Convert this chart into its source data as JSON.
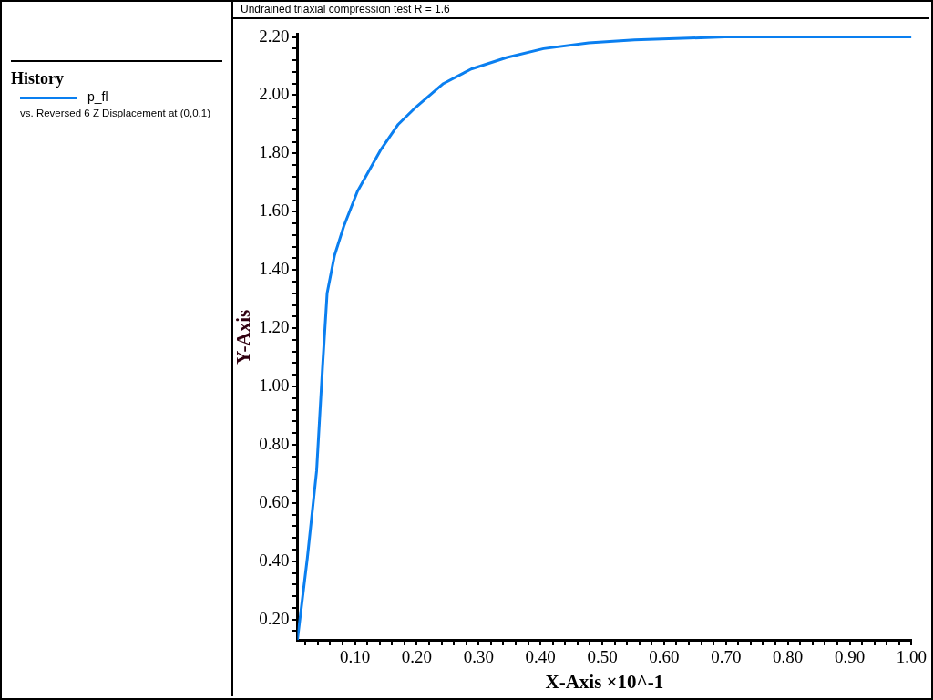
{
  "chart_data": {
    "type": "line",
    "title": "Undrained triaxial compression test R = 1.6",
    "xlabel": "X-Axis ×10^-1",
    "ylabel": "Y-Axis",
    "legend_title": "History",
    "legend": "left",
    "annotations": [
      "vs. Reversed 6 Z Displacement at (0,0,1)"
    ],
    "marker": "none",
    "line_style": "solid",
    "grid": false,
    "xlim": [
      0.007,
      1.0
    ],
    "ylim": [
      0.13,
      2.21
    ],
    "xticks": [
      {
        "value": 0.02,
        "label": null
      },
      {
        "value": 0.04,
        "label": null
      },
      {
        "value": 0.06,
        "label": null
      },
      {
        "value": 0.08,
        "label": null
      },
      {
        "value": 0.1,
        "label": "0.10"
      },
      {
        "value": 0.12,
        "label": null
      },
      {
        "value": 0.14,
        "label": null
      },
      {
        "value": 0.16,
        "label": null
      },
      {
        "value": 0.18,
        "label": null
      },
      {
        "value": 0.2,
        "label": "0.20"
      },
      {
        "value": 0.22,
        "label": null
      },
      {
        "value": 0.24,
        "label": null
      },
      {
        "value": 0.26,
        "label": null
      },
      {
        "value": 0.28,
        "label": null
      },
      {
        "value": 0.3,
        "label": "0.30"
      },
      {
        "value": 0.32,
        "label": null
      },
      {
        "value": 0.34,
        "label": null
      },
      {
        "value": 0.36,
        "label": null
      },
      {
        "value": 0.38,
        "label": null
      },
      {
        "value": 0.4,
        "label": "0.40"
      },
      {
        "value": 0.42,
        "label": null
      },
      {
        "value": 0.44,
        "label": null
      },
      {
        "value": 0.46,
        "label": null
      },
      {
        "value": 0.48,
        "label": null
      },
      {
        "value": 0.5,
        "label": "0.50"
      },
      {
        "value": 0.52,
        "label": null
      },
      {
        "value": 0.54,
        "label": null
      },
      {
        "value": 0.56,
        "label": null
      },
      {
        "value": 0.58,
        "label": null
      },
      {
        "value": 0.6,
        "label": "0.60"
      },
      {
        "value": 0.62,
        "label": null
      },
      {
        "value": 0.64,
        "label": null
      },
      {
        "value": 0.66,
        "label": null
      },
      {
        "value": 0.68,
        "label": null
      },
      {
        "value": 0.7,
        "label": "0.70"
      },
      {
        "value": 0.72,
        "label": null
      },
      {
        "value": 0.74,
        "label": null
      },
      {
        "value": 0.76,
        "label": null
      },
      {
        "value": 0.78,
        "label": null
      },
      {
        "value": 0.8,
        "label": "0.80"
      },
      {
        "value": 0.82,
        "label": null
      },
      {
        "value": 0.84,
        "label": null
      },
      {
        "value": 0.86,
        "label": null
      },
      {
        "value": 0.88,
        "label": null
      },
      {
        "value": 0.9,
        "label": "0.90"
      },
      {
        "value": 0.92,
        "label": null
      },
      {
        "value": 0.94,
        "label": null
      },
      {
        "value": 0.96,
        "label": null
      },
      {
        "value": 0.98,
        "label": null
      },
      {
        "value": 1.0,
        "label": "1.00"
      }
    ],
    "yticks": [
      {
        "value": 0.16,
        "label": null
      },
      {
        "value": 0.2,
        "label": "0.20"
      },
      {
        "value": 0.24,
        "label": null
      },
      {
        "value": 0.28,
        "label": null
      },
      {
        "value": 0.32,
        "label": null
      },
      {
        "value": 0.36,
        "label": null
      },
      {
        "value": 0.4,
        "label": "0.40"
      },
      {
        "value": 0.44,
        "label": null
      },
      {
        "value": 0.48,
        "label": null
      },
      {
        "value": 0.52,
        "label": null
      },
      {
        "value": 0.56,
        "label": null
      },
      {
        "value": 0.6,
        "label": "0.60"
      },
      {
        "value": 0.64,
        "label": null
      },
      {
        "value": 0.68,
        "label": null
      },
      {
        "value": 0.72,
        "label": null
      },
      {
        "value": 0.76,
        "label": null
      },
      {
        "value": 0.8,
        "label": "0.80"
      },
      {
        "value": 0.84,
        "label": null
      },
      {
        "value": 0.88,
        "label": null
      },
      {
        "value": 0.92,
        "label": null
      },
      {
        "value": 0.96,
        "label": null
      },
      {
        "value": 1.0,
        "label": "1.00"
      },
      {
        "value": 1.04,
        "label": null
      },
      {
        "value": 1.08,
        "label": null
      },
      {
        "value": 1.12,
        "label": null
      },
      {
        "value": 1.16,
        "label": null
      },
      {
        "value": 1.2,
        "label": "1.20"
      },
      {
        "value": 1.24,
        "label": null
      },
      {
        "value": 1.28,
        "label": null
      },
      {
        "value": 1.32,
        "label": null
      },
      {
        "value": 1.36,
        "label": null
      },
      {
        "value": 1.4,
        "label": "1.40"
      },
      {
        "value": 1.44,
        "label": null
      },
      {
        "value": 1.48,
        "label": null
      },
      {
        "value": 1.52,
        "label": null
      },
      {
        "value": 1.56,
        "label": null
      },
      {
        "value": 1.6,
        "label": "1.60"
      },
      {
        "value": 1.64,
        "label": null
      },
      {
        "value": 1.68,
        "label": null
      },
      {
        "value": 1.72,
        "label": null
      },
      {
        "value": 1.76,
        "label": null
      },
      {
        "value": 1.8,
        "label": "1.80"
      },
      {
        "value": 1.84,
        "label": null
      },
      {
        "value": 1.88,
        "label": null
      },
      {
        "value": 1.92,
        "label": null
      },
      {
        "value": 1.96,
        "label": null
      },
      {
        "value": 2.0,
        "label": "2.00"
      },
      {
        "value": 2.04,
        "label": null
      },
      {
        "value": 2.08,
        "label": null
      },
      {
        "value": 2.12,
        "label": null
      },
      {
        "value": 2.16,
        "label": null
      },
      {
        "value": 2.2,
        "label": "2.20"
      }
    ],
    "series": [
      {
        "name": "p_fl",
        "color": "#0a7ff0",
        "x": [
          0.007,
          0.023,
          0.038,
          0.048,
          0.055,
          0.067,
          0.082,
          0.104,
          0.141,
          0.17,
          0.199,
          0.243,
          0.288,
          0.346,
          0.405,
          0.478,
          0.552,
          0.698,
          0.845,
          1.0
        ],
        "values": [
          0.13,
          0.41,
          0.71,
          1.08,
          1.32,
          1.45,
          1.55,
          1.67,
          1.81,
          1.9,
          1.96,
          2.04,
          2.09,
          2.13,
          2.16,
          2.18,
          2.19,
          2.2,
          2.2,
          2.2
        ]
      }
    ]
  }
}
